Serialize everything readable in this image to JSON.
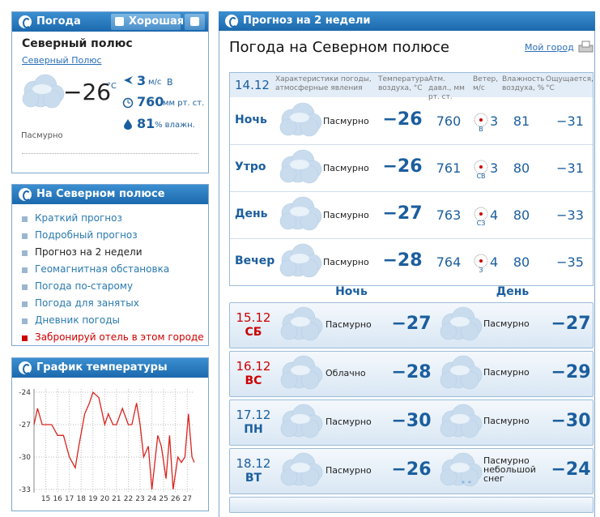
{
  "weather_widget": {
    "title": "Погода",
    "rate_button": "Хорошая",
    "city": "Северный полюс",
    "city_link": "Северный Полюс",
    "temperature": "−26",
    "temp_unit": "°C",
    "wind_speed": "3",
    "wind_unit": "м/с",
    "wind_dir": "В",
    "pressure": "760",
    "pressure_unit": "мм рт. ст.",
    "humidity": "81",
    "humidity_unit": "% влажн.",
    "condition": "Пасмурно"
  },
  "nav": {
    "title": "На Северном полюсе",
    "links": [
      "Краткий прогноз",
      "Подробный прогноз",
      "Прогноз на 2 недели",
      "Геомагнитная обстановка",
      "Погода по-старому",
      "Погода для занятых",
      "Дневник погоды",
      "Забронируй отель в этом городе"
    ]
  },
  "chart_data": {
    "type": "line",
    "title": "График температуры",
    "color": "#d9231e",
    "grid": true,
    "x": [
      14.0,
      14.3,
      14.7,
      15.0,
      15.5,
      16.0,
      16.5,
      17.0,
      17.5,
      17.8,
      18.3,
      18.7,
      19.0,
      19.5,
      20.0,
      20.3,
      20.7,
      21.0,
      21.5,
      22.0,
      22.3,
      22.7,
      23.0,
      23.3,
      23.7,
      24.0,
      24.5,
      24.8,
      25.2,
      25.5,
      25.8,
      26.2,
      26.5,
      26.8,
      27.1,
      27.4,
      27.6
    ],
    "values": [
      -27,
      -25.5,
      -27,
      -27,
      -27,
      -28,
      -28,
      -30,
      -31,
      -29,
      -26,
      -25,
      -24,
      -24.5,
      -27,
      -26,
      -27,
      -27,
      -25.5,
      -27,
      -27,
      -25,
      -27,
      -30,
      -29,
      -33,
      -28,
      -29,
      -32,
      -28,
      -33,
      -30,
      -30.5,
      -30,
      -26,
      -30,
      -30.5
    ],
    "xlim": [
      14.0,
      27.6
    ],
    "ylim": [
      -33.3,
      -23.7
    ],
    "xticks": [
      15,
      16,
      17,
      18,
      19,
      20,
      21,
      22,
      23,
      24,
      25,
      26,
      27
    ],
    "yticks": [
      -24,
      -27,
      -30,
      -33
    ]
  },
  "forecast": {
    "title": "Прогноз на 2 недели",
    "heading": "Погода на Северном полюсе",
    "my_city": "Мой город",
    "today": {
      "date": "14.12",
      "columns": [
        "Характеристики погоды, атмосферные явления",
        "Температура воздуха, °C",
        "Атм. давл., мм рт. ст.",
        "Ветер, м/с",
        "Влажность воздуха, %",
        "Ощущается, °C"
      ],
      "rows": [
        {
          "period": "Ночь",
          "condition": "Пасмурно",
          "temp": "−26",
          "pressure": "760",
          "wind_dir": "В",
          "wind_speed": "3",
          "humidity": "81",
          "feels": "−31"
        },
        {
          "period": "Утро",
          "condition": "Пасмурно",
          "temp": "−26",
          "pressure": "761",
          "wind_dir": "СВ",
          "wind_speed": "3",
          "humidity": "80",
          "feels": "−31"
        },
        {
          "period": "День",
          "condition": "Пасмурно",
          "temp": "−27",
          "pressure": "763",
          "wind_dir": "СЗ",
          "wind_speed": "4",
          "humidity": "80",
          "feels": "−33"
        },
        {
          "period": "Вечер",
          "condition": "Пасмурно",
          "temp": "−28",
          "pressure": "764",
          "wind_dir": "З",
          "wind_speed": "4",
          "humidity": "80",
          "feels": "−35"
        }
      ]
    },
    "night_label": "Ночь",
    "day_label": "День",
    "days": [
      {
        "date": "15.12",
        "weekday": "СБ",
        "night_condition": "Пасмурно",
        "night_temp": "−27",
        "day_condition": "Пасмурно",
        "day_temp": "−27"
      },
      {
        "date": "16.12",
        "weekday": "ВС",
        "night_condition": "Облачно",
        "night_temp": "−28",
        "day_condition": "Пасмурно",
        "day_temp": "−29"
      },
      {
        "date": "17.12",
        "weekday": "ПН",
        "night_condition": "Пасмурно",
        "night_temp": "−30",
        "day_condition": "Пасмурно",
        "day_temp": "−30"
      },
      {
        "date": "18.12",
        "weekday": "ВТ",
        "night_condition": "Пасмурно",
        "night_temp": "−26",
        "day_condition": "Пасмурно небольшой снег",
        "day_temp": "−24"
      }
    ]
  }
}
